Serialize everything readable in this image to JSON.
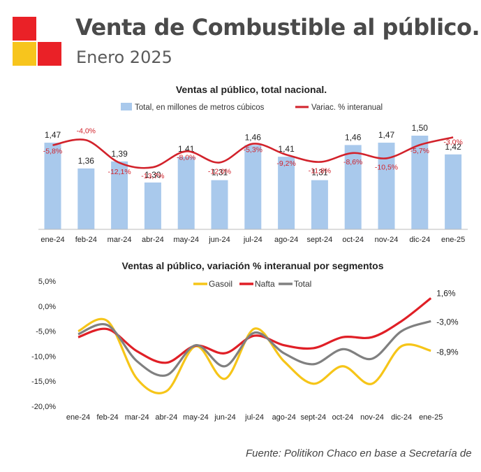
{
  "header": {
    "title": "Venta de Combustible al público.",
    "subtitle": "Enero 2025",
    "logo_colors": {
      "red": "#ea2127",
      "yellow": "#f7c51d"
    }
  },
  "footer": {
    "source": "Fuente: Politikon Chaco en base a Secretaría de"
  },
  "chart_data": [
    {
      "type": "bar",
      "title": "Ventas al público, total nacional.",
      "categories": [
        "ene-24",
        "feb-24",
        "mar-24",
        "abr-24",
        "may-24",
        "jun-24",
        "jul-24",
        "ago-24",
        "sept-24",
        "oct-24",
        "nov-24",
        "dic-24",
        "ene-25"
      ],
      "bar_series": {
        "name": "Total, en millones de metros cúbicos",
        "values": [
          1.47,
          1.36,
          1.39,
          1.3,
          1.41,
          1.31,
          1.46,
          1.41,
          1.31,
          1.46,
          1.47,
          1.5,
          1.42
        ],
        "labels": [
          "1,47",
          "1,36",
          "1,39",
          "1,30",
          "1,41",
          "1,31",
          "1,46",
          "1,41",
          "1,31",
          "1,46",
          "1,47",
          "1,50",
          "1,42"
        ],
        "color": "#a9c9ec"
      },
      "line_series": {
        "name": "Variac. % interanual",
        "values": [
          -5.8,
          -4.0,
          -12.1,
          -13.7,
          -8.0,
          -12.0,
          -5.3,
          -9.2,
          -11.8,
          -8.6,
          -10.5,
          -5.7,
          -3.0
        ],
        "labels": [
          "-5,8%",
          "-4,0%",
          "-12,1%",
          "-13,7%",
          "-8,0%",
          "-12,0%",
          "-5,3%",
          "-9,2%",
          "-11,8%",
          "-8,6%",
          "-10,5%",
          "-5,7%",
          "-3,0%"
        ],
        "color": "#d2222b"
      },
      "legend_position": "top",
      "grid": false
    },
    {
      "type": "line",
      "title": "Ventas al público, variación % interanual por segmentos",
      "categories": [
        "ene-24",
        "feb-24",
        "mar-24",
        "abr-24",
        "may-24",
        "jun-24",
        "jul-24",
        "ago-24",
        "sept-24",
        "oct-24",
        "nov-24",
        "dic-24",
        "ene-25"
      ],
      "ylim": [
        -20,
        5
      ],
      "yticks": [
        5,
        0,
        -5,
        -10,
        -15,
        -20
      ],
      "ytick_labels": [
        "5,0%",
        "0,0%",
        "-5,0%",
        "-10,0%",
        "-15,0%",
        "-20,0%"
      ],
      "series": [
        {
          "name": "Gasoil",
          "color": "#f6c518",
          "values": [
            -5.0,
            -3.0,
            -14.5,
            -17.0,
            -8.0,
            -14.5,
            -4.5,
            -11.0,
            -15.5,
            -12.0,
            -15.5,
            -8.0,
            -8.9
          ]
        },
        {
          "name": "Nafta",
          "color": "#e01f26",
          "values": [
            -6.2,
            -4.6,
            -9.0,
            -11.3,
            -7.9,
            -9.4,
            -5.9,
            -7.8,
            -8.4,
            -6.2,
            -6.2,
            -3.0,
            1.6
          ]
        },
        {
          "name": "Total",
          "color": "#808080",
          "values": [
            -5.6,
            -3.8,
            -11.0,
            -13.8,
            -7.8,
            -12.0,
            -5.3,
            -9.4,
            -11.6,
            -8.6,
            -10.5,
            -5.0,
            -3.0
          ]
        }
      ],
      "end_labels": [
        "-8,9%",
        "1,6%",
        "-3,0%"
      ],
      "legend_position": "top",
      "grid": false
    }
  ]
}
